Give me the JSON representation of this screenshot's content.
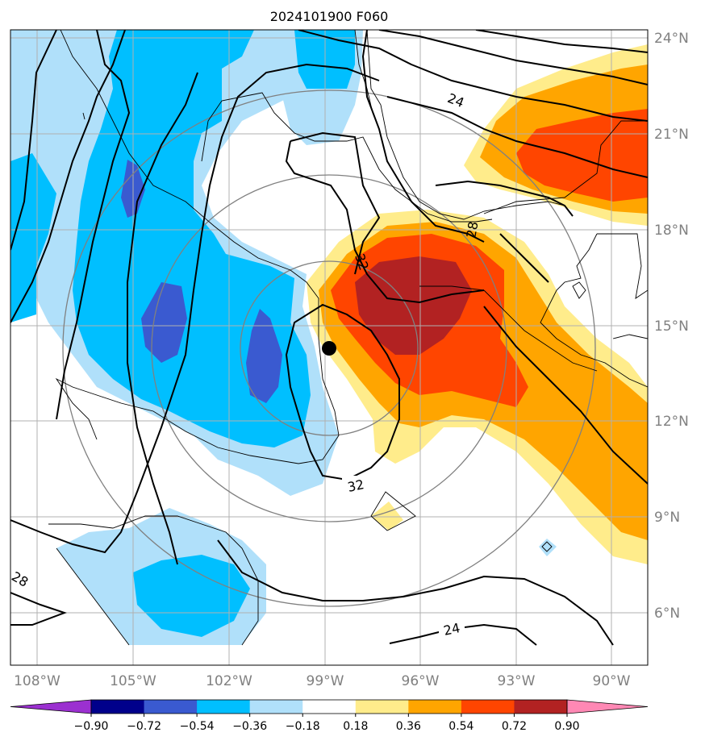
{
  "title": "2024101900 F060",
  "lat_labels": [
    "24°N",
    "21°N",
    "18°N",
    "15°N",
    "12°N",
    "9°N",
    "6°N"
  ],
  "lon_labels": [
    "108°W",
    "105°W",
    "102°W",
    "99°W",
    "96°W",
    "93°W",
    "90°W"
  ],
  "colorbar": {
    "tick_labels": [
      "−0.90",
      "−0.72",
      "−0.54",
      "−0.36",
      "−0.18",
      "0.18",
      "0.36",
      "0.54",
      "0.72",
      "0.90"
    ],
    "colors": [
      "#9b30d0",
      "#00008b",
      "#3a5ad0",
      "#00bfff",
      "#b0e0fa",
      "#ffffff",
      "#ffec8b",
      "#ffa500",
      "#ff4500",
      "#b22222",
      "#ff88b4"
    ]
  },
  "contour_labels": [
    "24",
    "32",
    "32",
    "28",
    "28",
    "24"
  ],
  "storm_marker": "storm-center-dot",
  "colors": {
    "grid": "#b0b0b0",
    "range_rings": "#808080",
    "contour": "#000000",
    "coast": "#000000"
  }
}
